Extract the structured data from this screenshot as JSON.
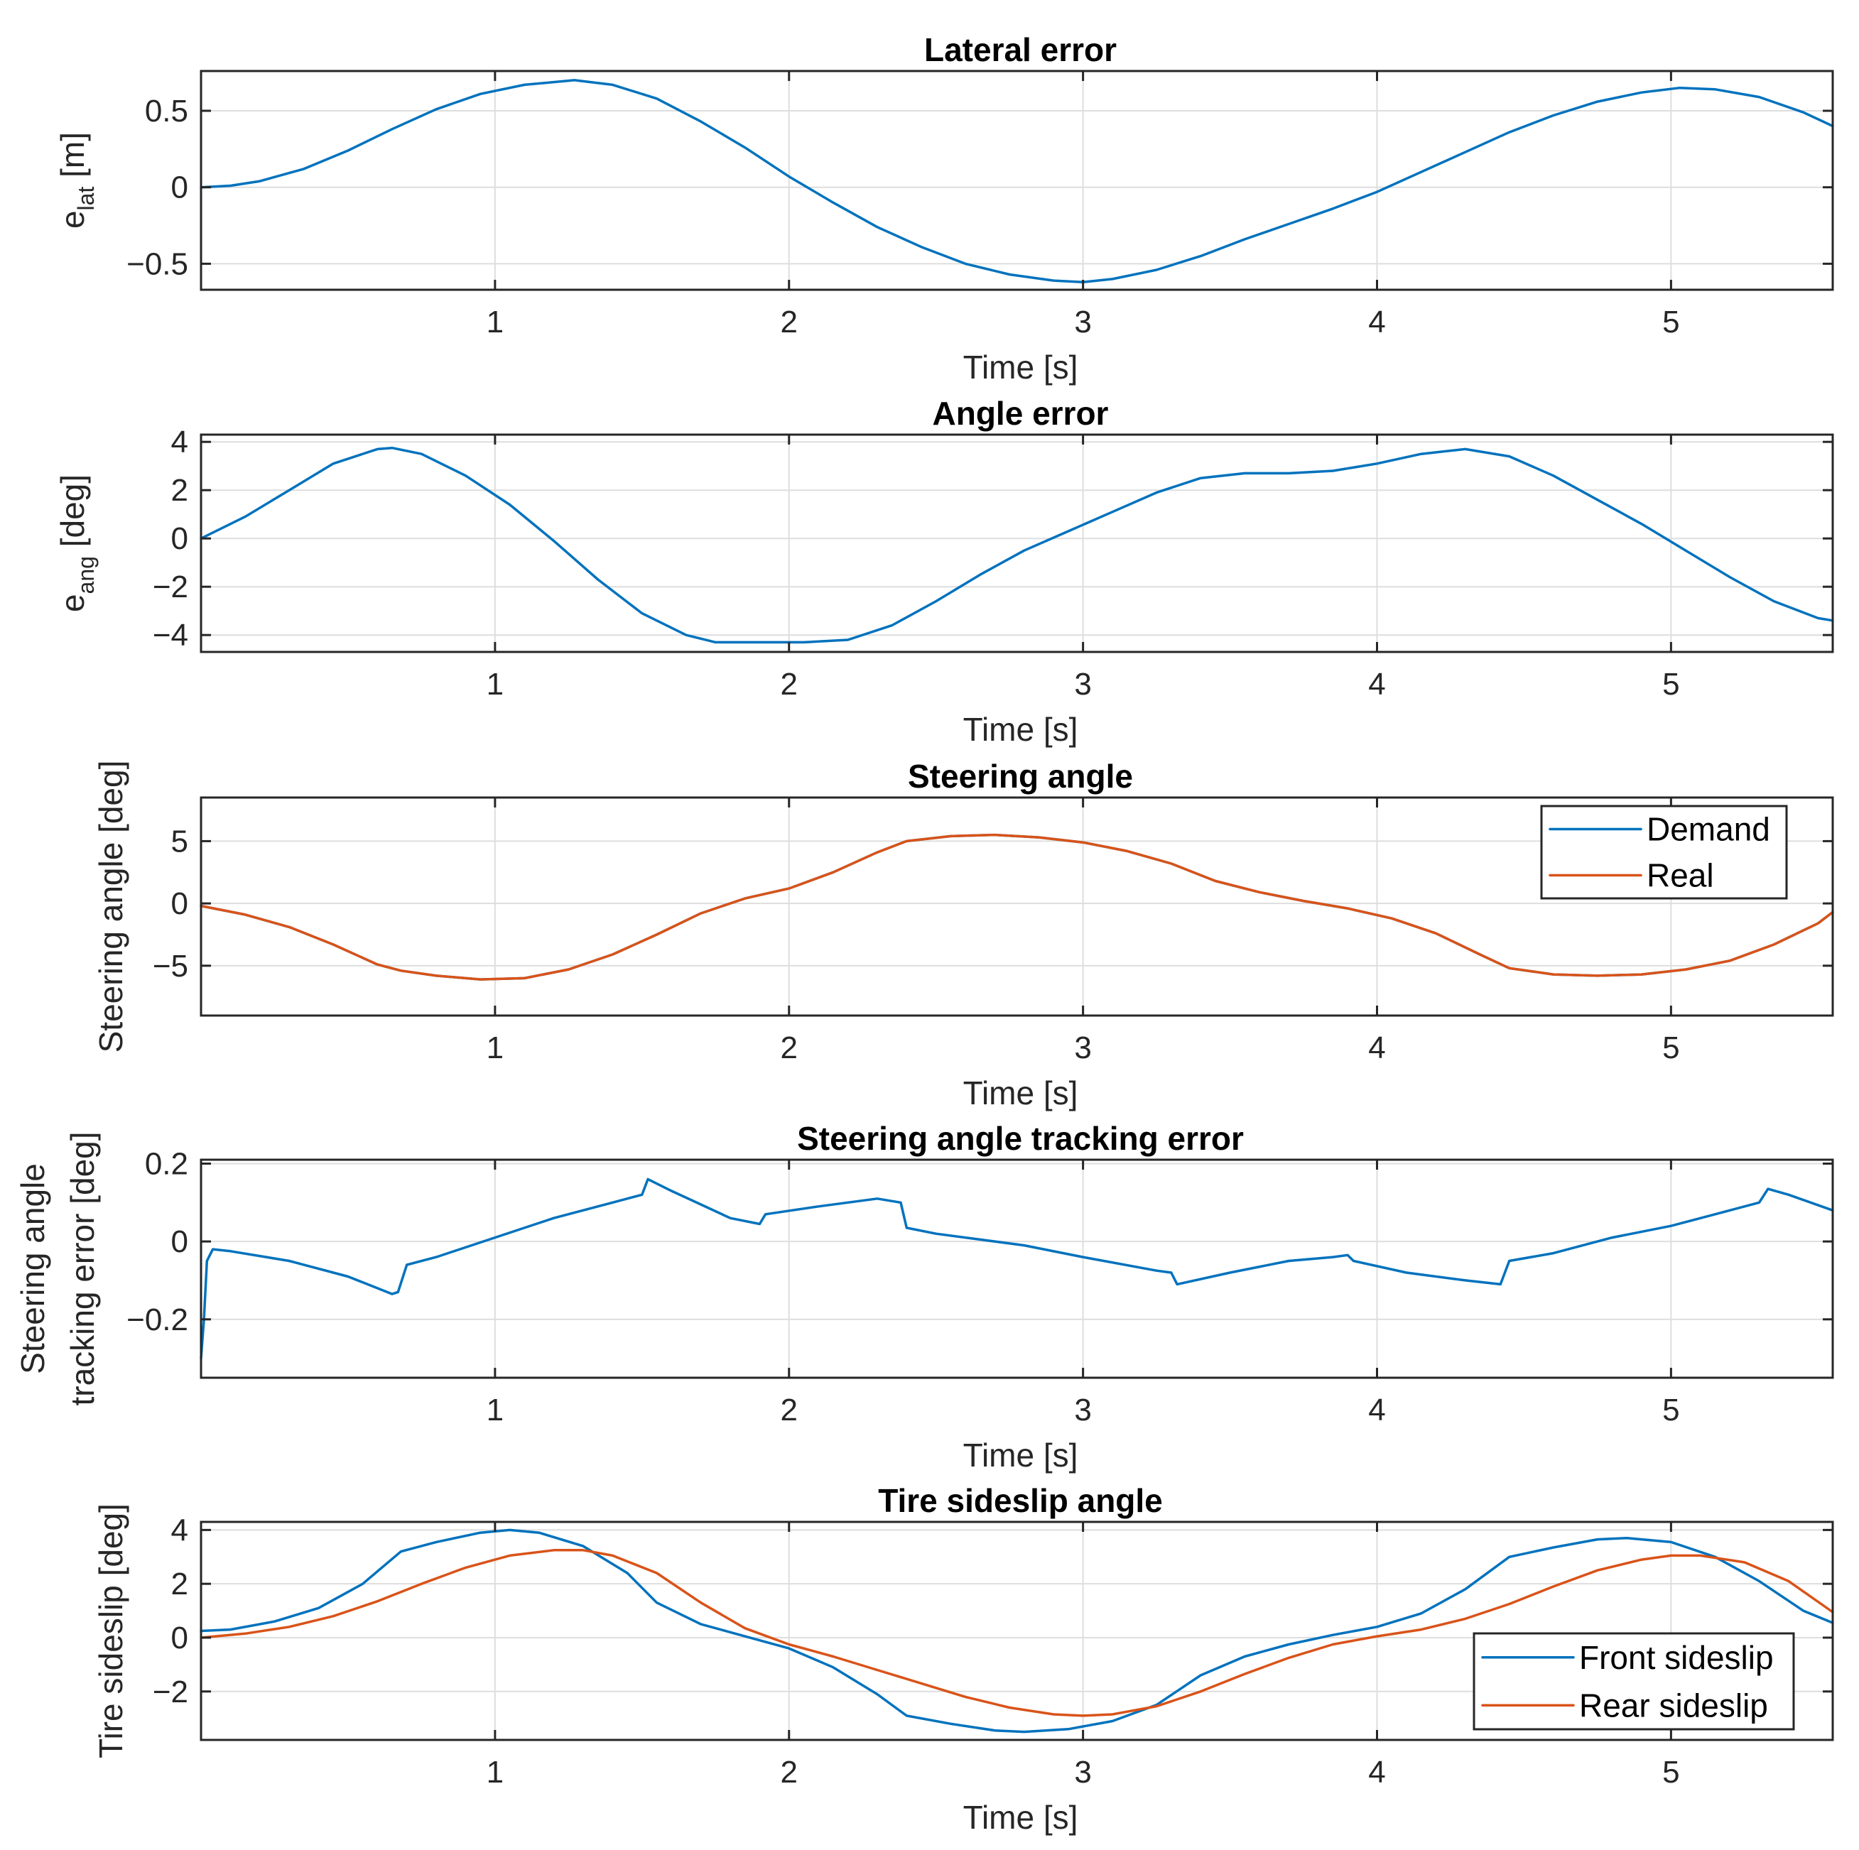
{
  "figure": {
    "colors": {
      "blue": "#0072BD",
      "orange": "#D95319"
    },
    "xlabel": "Time [s]",
    "xticks": [
      1,
      2,
      3,
      4,
      5
    ],
    "xticklabels": [
      "1",
      "2",
      "3",
      "4",
      "5"
    ],
    "xlim": [
      0,
      5.55
    ]
  },
  "chart_data": [
    {
      "type": "line",
      "title": "Lateral error",
      "ylabel_main": "e",
      "ylabel_sub": "lat",
      "ylabel_unit": " [m]",
      "ylim": [
        -0.67,
        0.76
      ],
      "yticks": [
        -0.5,
        0,
        0.5
      ],
      "yticklabels": [
        "−0.5",
        "0",
        "0.5"
      ],
      "series": [
        {
          "name": "e_lat",
          "color": "blue",
          "x": [
            0,
            0.1,
            0.2,
            0.35,
            0.5,
            0.65,
            0.8,
            0.95,
            1.1,
            1.27,
            1.4,
            1.55,
            1.7,
            1.85,
            2.0,
            2.15,
            2.3,
            2.45,
            2.6,
            2.75,
            2.9,
            3.0,
            3.1,
            3.25,
            3.4,
            3.55,
            3.7,
            3.85,
            4.0,
            4.15,
            4.3,
            4.45,
            4.6,
            4.75,
            4.9,
            5.03,
            5.15,
            5.3,
            5.45,
            5.55
          ],
          "y": [
            0,
            0.01,
            0.04,
            0.12,
            0.24,
            0.38,
            0.51,
            0.61,
            0.67,
            0.7,
            0.67,
            0.58,
            0.43,
            0.26,
            0.07,
            -0.1,
            -0.26,
            -0.39,
            -0.5,
            -0.57,
            -0.61,
            -0.62,
            -0.6,
            -0.54,
            -0.45,
            -0.34,
            -0.24,
            -0.14,
            -0.03,
            0.1,
            0.23,
            0.36,
            0.47,
            0.56,
            0.62,
            0.65,
            0.64,
            0.59,
            0.49,
            0.4
          ]
        }
      ]
    },
    {
      "type": "line",
      "title": "Angle error",
      "ylabel_main": "e",
      "ylabel_sub": "ang",
      "ylabel_unit": " [deg]",
      "ylim": [
        -4.7,
        4.3
      ],
      "yticks": [
        -4,
        -2,
        0,
        2,
        4
      ],
      "yticklabels": [
        "−4",
        "−2",
        "0",
        "2",
        "4"
      ],
      "series": [
        {
          "name": "e_ang",
          "color": "blue",
          "x": [
            0,
            0.15,
            0.3,
            0.45,
            0.6,
            0.65,
            0.75,
            0.9,
            1.05,
            1.2,
            1.35,
            1.5,
            1.65,
            1.75,
            1.9,
            2.05,
            2.2,
            2.35,
            2.5,
            2.65,
            2.8,
            2.95,
            3.1,
            3.25,
            3.4,
            3.55,
            3.7,
            3.85,
            4.0,
            4.15,
            4.3,
            4.45,
            4.6,
            4.75,
            4.9,
            5.05,
            5.2,
            5.35,
            5.5,
            5.55
          ],
          "y": [
            0,
            0.9,
            2.0,
            3.1,
            3.7,
            3.75,
            3.5,
            2.6,
            1.4,
            -0.1,
            -1.7,
            -3.1,
            -4.0,
            -4.3,
            -4.3,
            -4.3,
            -4.2,
            -3.6,
            -2.6,
            -1.5,
            -0.5,
            0.3,
            1.1,
            1.9,
            2.5,
            2.7,
            2.7,
            2.8,
            3.1,
            3.5,
            3.7,
            3.4,
            2.6,
            1.6,
            0.6,
            -0.5,
            -1.6,
            -2.6,
            -3.3,
            -3.4
          ]
        }
      ]
    },
    {
      "type": "line",
      "title": "Steering angle",
      "ylabel": "Steering angle [deg]",
      "ylim": [
        -9,
        8.5
      ],
      "yticks": [
        -5,
        0,
        5
      ],
      "yticklabels": [
        "−5",
        "0",
        "5"
      ],
      "legend": "top-right",
      "series": [
        {
          "name": "Demand",
          "color": "blue",
          "x": [
            0,
            0.15,
            0.3,
            0.45,
            0.6,
            0.68,
            0.8,
            0.95,
            1.1,
            1.25,
            1.4,
            1.55,
            1.7,
            1.85,
            2.0,
            2.15,
            2.3,
            2.4,
            2.55,
            2.7,
            2.85,
            3.0,
            3.15,
            3.3,
            3.45,
            3.6,
            3.75,
            3.9,
            4.05,
            4.2,
            4.35,
            4.45,
            4.6,
            4.75,
            4.9,
            5.05,
            5.2,
            5.35,
            5.5,
            5.55
          ],
          "y": [
            -0.2,
            -0.9,
            -1.9,
            -3.3,
            -4.9,
            -5.4,
            -5.8,
            -6.1,
            -6.0,
            -5.3,
            -4.1,
            -2.5,
            -0.8,
            0.4,
            1.2,
            2.5,
            4.1,
            5.0,
            5.4,
            5.5,
            5.3,
            4.9,
            4.2,
            3.2,
            1.8,
            0.9,
            0.2,
            -0.4,
            -1.2,
            -2.4,
            -4.1,
            -5.2,
            -5.7,
            -5.8,
            -5.7,
            -5.3,
            -4.6,
            -3.3,
            -1.6,
            -0.7
          ]
        },
        {
          "name": "Real",
          "color": "orange",
          "x": [
            0,
            0.15,
            0.3,
            0.45,
            0.6,
            0.68,
            0.8,
            0.95,
            1.1,
            1.25,
            1.4,
            1.55,
            1.7,
            1.85,
            2.0,
            2.15,
            2.3,
            2.4,
            2.55,
            2.7,
            2.85,
            3.0,
            3.15,
            3.3,
            3.45,
            3.6,
            3.75,
            3.9,
            4.05,
            4.2,
            4.35,
            4.45,
            4.6,
            4.75,
            4.9,
            5.05,
            5.2,
            5.35,
            5.5,
            5.55
          ],
          "y": [
            -0.2,
            -0.9,
            -1.9,
            -3.3,
            -4.9,
            -5.4,
            -5.8,
            -6.1,
            -6.0,
            -5.3,
            -4.1,
            -2.5,
            -0.8,
            0.4,
            1.2,
            2.5,
            4.1,
            5.0,
            5.4,
            5.5,
            5.3,
            4.9,
            4.2,
            3.2,
            1.8,
            0.9,
            0.2,
            -0.4,
            -1.2,
            -2.4,
            -4.1,
            -5.2,
            -5.7,
            -5.8,
            -5.7,
            -5.3,
            -4.6,
            -3.3,
            -1.6,
            -0.7
          ]
        }
      ]
    },
    {
      "type": "line",
      "title": "Steering angle tracking error",
      "ylabel_line1": "Steering angle",
      "ylabel_line2": "tracking error [deg]",
      "ylim": [
        -0.35,
        0.21
      ],
      "yticks": [
        -0.2,
        0,
        0.2
      ],
      "yticklabels": [
        "−0.2",
        "0",
        "0.2"
      ],
      "series": [
        {
          "name": "tracking error",
          "color": "blue",
          "x": [
            0,
            0.01,
            0.02,
            0.04,
            0.1,
            0.3,
            0.5,
            0.6,
            0.65,
            0.67,
            0.7,
            0.8,
            1.0,
            1.2,
            1.4,
            1.5,
            1.52,
            1.6,
            1.8,
            1.9,
            1.92,
            2.1,
            2.3,
            2.38,
            2.4,
            2.5,
            2.8,
            3.0,
            3.25,
            3.3,
            3.32,
            3.5,
            3.7,
            3.85,
            3.9,
            3.92,
            4.1,
            4.3,
            4.42,
            4.45,
            4.6,
            4.8,
            5.0,
            5.2,
            5.3,
            5.33,
            5.4,
            5.55
          ],
          "y": [
            -0.3,
            -0.2,
            -0.05,
            -0.02,
            -0.025,
            -0.05,
            -0.09,
            -0.12,
            -0.135,
            -0.13,
            -0.06,
            -0.04,
            0.01,
            0.06,
            0.1,
            0.12,
            0.16,
            0.13,
            0.06,
            0.045,
            0.07,
            0.09,
            0.11,
            0.1,
            0.035,
            0.02,
            -0.01,
            -0.04,
            -0.075,
            -0.08,
            -0.11,
            -0.08,
            -0.05,
            -0.04,
            -0.035,
            -0.05,
            -0.08,
            -0.1,
            -0.11,
            -0.05,
            -0.03,
            0.01,
            0.04,
            0.08,
            0.1,
            0.135,
            0.12,
            0.08
          ]
        }
      ]
    },
    {
      "type": "line",
      "title": "Tire sideslip angle",
      "ylabel": "Tire sideslip [deg]",
      "ylim": [
        -3.8,
        4.3
      ],
      "yticks": [
        -2,
        0,
        2,
        4
      ],
      "yticklabels": [
        "−2",
        "0",
        "2",
        "4"
      ],
      "legend": "bottom-right",
      "series": [
        {
          "name": "Front sideslip",
          "color": "blue",
          "x": [
            0,
            0.1,
            0.25,
            0.4,
            0.55,
            0.68,
            0.8,
            0.95,
            1.05,
            1.15,
            1.3,
            1.45,
            1.55,
            1.7,
            1.85,
            2.0,
            2.15,
            2.3,
            2.4,
            2.55,
            2.7,
            2.8,
            2.95,
            3.1,
            3.25,
            3.4,
            3.55,
            3.7,
            3.85,
            4.0,
            4.15,
            4.3,
            4.45,
            4.6,
            4.75,
            4.85,
            5.0,
            5.15,
            5.3,
            5.45,
            5.55
          ],
          "y": [
            0.25,
            0.3,
            0.6,
            1.1,
            2.0,
            3.2,
            3.55,
            3.9,
            4.0,
            3.9,
            3.4,
            2.4,
            1.3,
            0.5,
            0.05,
            -0.4,
            -1.1,
            -2.1,
            -2.9,
            -3.2,
            -3.45,
            -3.5,
            -3.4,
            -3.1,
            -2.5,
            -1.4,
            -0.7,
            -0.25,
            0.1,
            0.4,
            0.9,
            1.8,
            3.0,
            3.35,
            3.65,
            3.7,
            3.55,
            3.0,
            2.1,
            1.0,
            0.55
          ]
        },
        {
          "name": "Rear sideslip",
          "color": "orange",
          "x": [
            0,
            0.15,
            0.3,
            0.45,
            0.6,
            0.75,
            0.9,
            1.05,
            1.2,
            1.3,
            1.4,
            1.55,
            1.7,
            1.85,
            2.0,
            2.15,
            2.3,
            2.45,
            2.6,
            2.75,
            2.9,
            3.0,
            3.1,
            3.25,
            3.4,
            3.55,
            3.7,
            3.85,
            4.0,
            4.15,
            4.3,
            4.45,
            4.6,
            4.75,
            4.9,
            5.0,
            5.1,
            5.25,
            5.4,
            5.55
          ],
          "y": [
            0,
            0.15,
            0.4,
            0.8,
            1.35,
            2.0,
            2.6,
            3.05,
            3.25,
            3.25,
            3.05,
            2.4,
            1.3,
            0.35,
            -0.25,
            -0.7,
            -1.2,
            -1.7,
            -2.2,
            -2.6,
            -2.85,
            -2.9,
            -2.85,
            -2.55,
            -2.0,
            -1.35,
            -0.75,
            -0.25,
            0.05,
            0.3,
            0.7,
            1.25,
            1.9,
            2.5,
            2.9,
            3.05,
            3.05,
            2.8,
            2.1,
            0.95
          ]
        }
      ]
    }
  ]
}
